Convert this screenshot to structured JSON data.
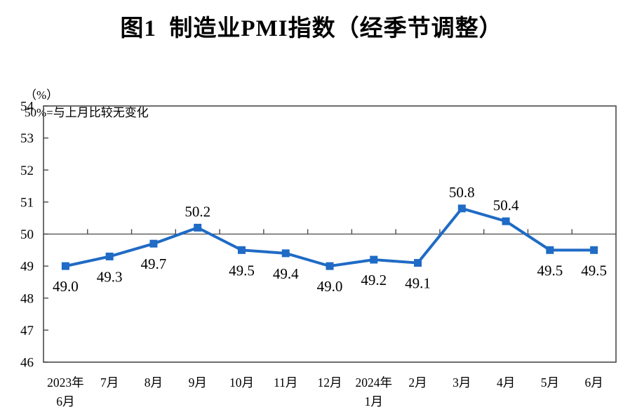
{
  "figure": {
    "title": "图1  制造业PMI指数（经季节调整）",
    "unit_label": "（%）",
    "reference_note": "50%=与上月比较无变化"
  },
  "chart_data": {
    "type": "line",
    "title": "图1 制造业PMI指数（经季节调整）",
    "categories": [
      "2023年\n6月",
      "7月",
      "8月",
      "9月",
      "10月",
      "11月",
      "12月",
      "2024年\n1月",
      "2月",
      "3月",
      "4月",
      "5月",
      "6月"
    ],
    "values": [
      49.0,
      49.3,
      49.7,
      50.2,
      49.5,
      49.4,
      49.0,
      49.2,
      49.1,
      50.8,
      50.4,
      49.5,
      49.5
    ],
    "data_labels": [
      "49.0",
      "49.3",
      "49.7",
      "50.2",
      "49.5",
      "49.4",
      "49.0",
      "49.2",
      "49.1",
      "50.8",
      "50.4",
      "49.5",
      "49.5"
    ],
    "ylabel": "（%）",
    "reference_note": "50%=与上月比较无变化",
    "ylim": [
      46,
      54
    ],
    "ytick_step": 1,
    "yticks": [
      46,
      47,
      48,
      49,
      50,
      51,
      52,
      53,
      54
    ],
    "reference_line": 50,
    "grid": false,
    "legend": "none",
    "series_color": "#1F6BC5",
    "axis_color": "#4a4a4a",
    "label_color": "#000000"
  }
}
